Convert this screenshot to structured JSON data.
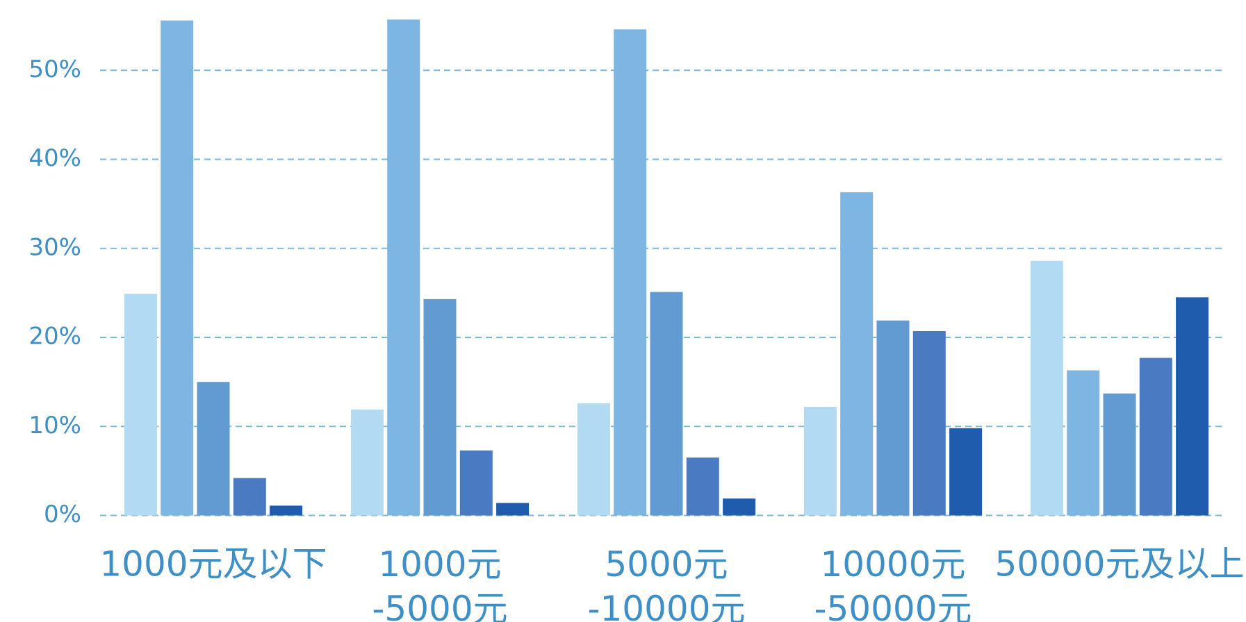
{
  "chart_data": {
    "type": "bar",
    "categories": [
      "1000元及以下",
      "1000元\n-5000元",
      "5000元\n-10000元",
      "10000元\n-50000元",
      "50000元及以上"
    ],
    "series": [
      {
        "color": "#b3daf3",
        "values": [
          24.9,
          11.9,
          12.6,
          12.2,
          28.6
        ]
      },
      {
        "color": "#7db5e3",
        "values": [
          55.6,
          55.7,
          54.6,
          36.3,
          16.3
        ]
      },
      {
        "color": "#629bd2",
        "values": [
          15.0,
          24.3,
          25.1,
          21.9,
          13.7
        ]
      },
      {
        "color": "#4a7bc2",
        "values": [
          4.2,
          7.3,
          6.5,
          20.7,
          17.7
        ]
      },
      {
        "color": "#1f5cad",
        "values": [
          1.1,
          1.4,
          1.9,
          9.8,
          24.5
        ]
      }
    ],
    "ylim": [
      0,
      57.9
    ],
    "yticks": [
      {
        "value": 0,
        "label": "0%"
      },
      {
        "value": 10,
        "label": "10%"
      },
      {
        "value": 20,
        "label": "20%"
      },
      {
        "value": 30,
        "label": "30%"
      },
      {
        "value": 40,
        "label": "40%"
      },
      {
        "value": 50,
        "label": "50%"
      }
    ],
    "grid": true
  }
}
